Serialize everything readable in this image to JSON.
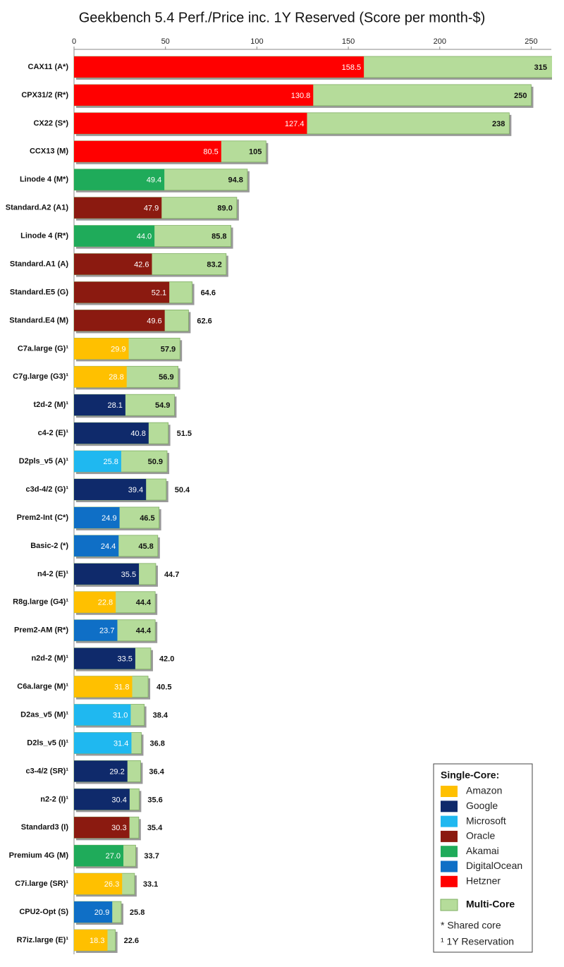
{
  "chart_data": {
    "type": "bar",
    "orientation": "horizontal",
    "title": "Geekbench 5.4 Perf./Price inc. 1Y Reserved  (Score per month-$)",
    "categories": [
      "CAX11 (A*)",
      "CPX31/2 (R*)",
      "CX22 (S*)",
      "CCX13 (M)",
      "Linode 4 (M*)",
      "Standard.A2 (A1)",
      "Linode 4 (R*)",
      "Standard.A1 (A)",
      "Standard.E5 (G)",
      "Standard.E4 (M)",
      "C7a.large (G)¹",
      "C7g.large (G3)¹",
      "t2d-2 (M)¹",
      "c4-2 (E)¹",
      "D2pls_v5 (A)¹",
      "c3d-4/2 (G)¹",
      "Prem2-Int (C*)",
      "Basic-2 (*)",
      "n4-2 (E)¹",
      "R8g.large (G4)¹",
      "Prem2-AM (R*)",
      "n2d-2 (M)¹",
      "C6a.large (M)¹",
      "D2as_v5 (M)¹",
      "D2ls_v5 (I)¹",
      "c3-4/2 (SR)¹",
      "n2-2 (I)¹",
      "Standard3 (I)",
      "Premium 4G (M)",
      "C7i.large (SR)¹",
      "CPU2-Opt (S)",
      "R7iz.large (E)¹"
    ],
    "series": [
      {
        "name": "Multi-Core",
        "color": "#b5dc9a",
        "values": [
          315,
          250,
          238,
          105,
          94.8,
          89.0,
          85.8,
          83.2,
          64.6,
          62.6,
          57.9,
          56.9,
          54.9,
          51.5,
          50.9,
          50.4,
          46.5,
          45.8,
          44.7,
          44.4,
          44.4,
          42.0,
          40.5,
          38.4,
          36.8,
          36.4,
          35.6,
          35.4,
          33.7,
          33.1,
          25.8,
          22.6
        ],
        "value_labels": [
          "315",
          "250",
          "238",
          "105",
          "94.8",
          "89.0",
          "85.8",
          "83.2",
          "64.6",
          "62.6",
          "57.9",
          "56.9",
          "54.9",
          "51.5",
          "50.9",
          "50.4",
          "46.5",
          "45.8",
          "44.7",
          "44.4",
          "44.4",
          "42.0",
          "40.5",
          "38.4",
          "36.8",
          "36.4",
          "35.6",
          "35.4",
          "33.7",
          "33.1",
          "25.8",
          "22.6"
        ]
      },
      {
        "name": "Single-Core:",
        "colors": [
          "#ff0000",
          "#ff0000",
          "#ff0000",
          "#ff0000",
          "#1fab5a",
          "#8b1a10",
          "#1fab5a",
          "#8b1a10",
          "#8b1a10",
          "#8b1a10",
          "#ffc000",
          "#ffc000",
          "#0f2a6b",
          "#0f2a6b",
          "#1fb8f0",
          "#0f2a6b",
          "#0f6fc6",
          "#0f6fc6",
          "#0f2a6b",
          "#ffc000",
          "#0f6fc6",
          "#0f2a6b",
          "#ffc000",
          "#1fb8f0",
          "#1fb8f0",
          "#0f2a6b",
          "#0f2a6b",
          "#8b1a10",
          "#1fab5a",
          "#ffc000",
          "#0f6fc6",
          "#ffc000"
        ],
        "values": [
          158.5,
          130.8,
          127.4,
          80.5,
          49.4,
          47.9,
          44.0,
          42.6,
          52.1,
          49.6,
          29.9,
          28.8,
          28.1,
          40.8,
          25.8,
          39.4,
          24.9,
          24.4,
          35.5,
          22.8,
          23.7,
          33.5,
          31.8,
          31.0,
          31.4,
          29.2,
          30.4,
          30.3,
          27.0,
          26.3,
          20.9,
          18.3
        ],
        "value_labels": [
          "158.5",
          "130.8",
          "127.4",
          "80.5",
          "49.4",
          "47.9",
          "44.0",
          "42.6",
          "52.1",
          "49.6",
          "29.9",
          "28.8",
          "28.1",
          "40.8",
          "25.8",
          "39.4",
          "24.9",
          "24.4",
          "35.5",
          "22.8",
          "23.7",
          "33.5",
          "31.8",
          "31.0",
          "31.4",
          "29.2",
          "30.4",
          "30.3",
          "27.0",
          "26.3",
          "20.9",
          "18.3"
        ]
      }
    ],
    "xlim": [
      0,
      261
    ],
    "xticks": [
      0,
      50,
      100,
      150,
      200,
      250
    ],
    "grid": false,
    "legend": {
      "corner": "lower-right",
      "items": [
        {
          "name": "Amazon",
          "color": "#ffc000"
        },
        {
          "name": "Google",
          "color": "#0f2a6b"
        },
        {
          "name": "Microsoft",
          "color": "#1fb8f0"
        },
        {
          "name": "Oracle",
          "color": "#8b1a10"
        },
        {
          "name": "Akamai",
          "color": "#1fab5a"
        },
        {
          "name": "DigitalOcean",
          "color": "#0f6fc6"
        },
        {
          "name": "Hetzner",
          "color": "#ff0000"
        }
      ],
      "notes": [
        "* Shared core",
        "¹ 1Y Reservation"
      ]
    }
  }
}
